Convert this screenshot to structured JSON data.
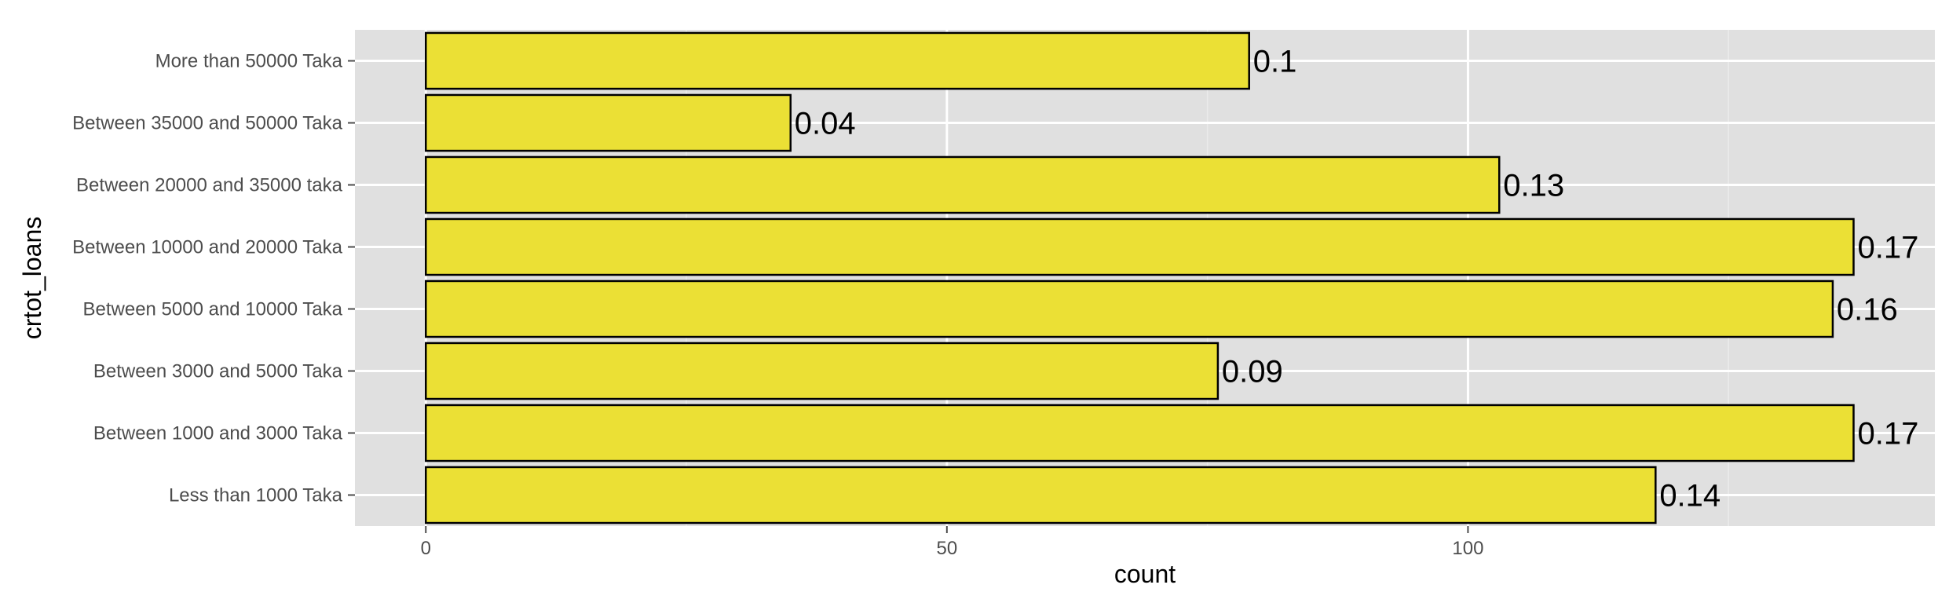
{
  "chart_data": {
    "type": "bar",
    "orientation": "horizontal",
    "title": "",
    "xlabel": "count",
    "ylabel": "crtot_loans",
    "categories": [
      "Less than 1000 Taka",
      "Between 1000 and 3000 Taka",
      "Between 3000 and 5000 Taka",
      "Between 5000 and 10000 Taka",
      "Between 10000 and 20000 Taka",
      "Between 20000 and 35000 taka",
      "Between 35000 and 50000 Taka",
      "More than 50000 Taka"
    ],
    "values": [
      118,
      137,
      76,
      135,
      137,
      103,
      35,
      79
    ],
    "bar_labels": [
      "0.14",
      "0.17",
      "0.09",
      "0.16",
      "0.17",
      "0.13",
      "0.04",
      "0.1"
    ],
    "xlim": [
      -6.8,
      144.8
    ],
    "xticks": [
      0,
      50,
      100
    ],
    "xtick_labels": [
      "0",
      "50",
      "100"
    ],
    "grid": true,
    "legend": "none",
    "colors": {
      "panel": "#e0e0e0",
      "grid_major": "#ffffff",
      "grid_minor": "#ebebeb",
      "bar_fill": "#ebe035",
      "bar_stroke": "#000000"
    }
  }
}
